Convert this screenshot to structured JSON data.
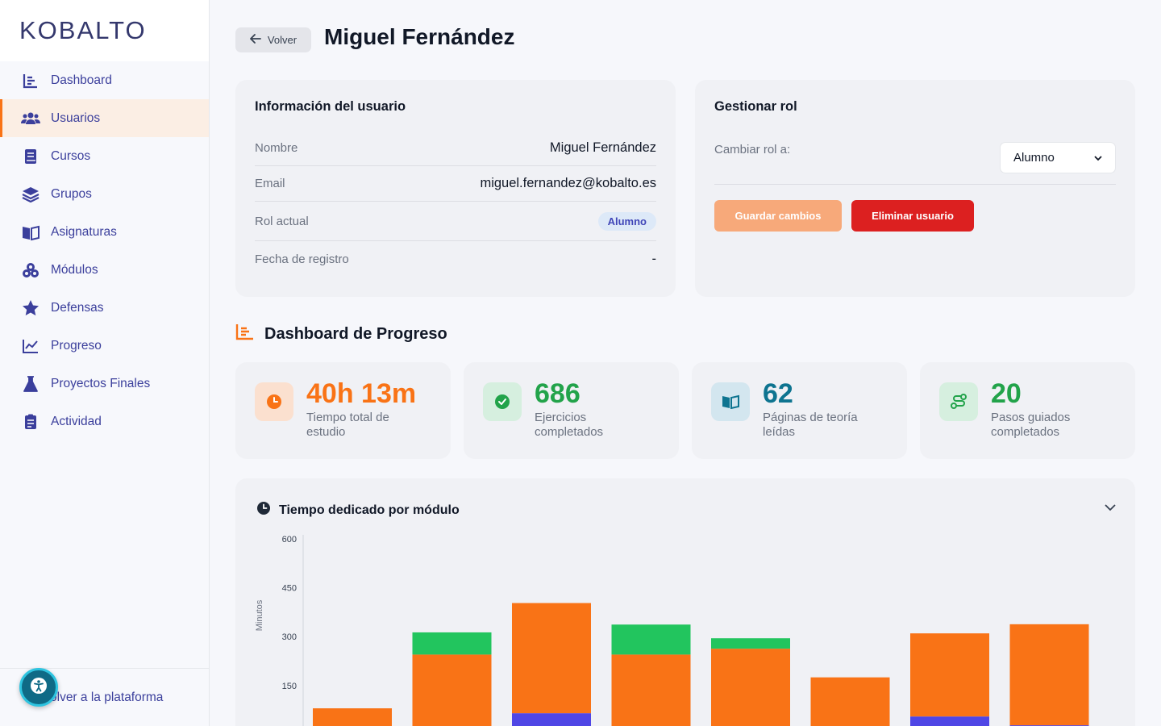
{
  "brand": {
    "logo": "KOBALTO"
  },
  "sidebar": {
    "items": [
      {
        "label": "Dashboard",
        "icon": "dashboard-icon"
      },
      {
        "label": "Usuarios",
        "icon": "users-icon",
        "active": true
      },
      {
        "label": "Cursos",
        "icon": "book-icon"
      },
      {
        "label": "Grupos",
        "icon": "layers-icon"
      },
      {
        "label": "Asignaturas",
        "icon": "open-book-icon"
      },
      {
        "label": "Módulos",
        "icon": "cubes-icon"
      },
      {
        "label": "Defensas",
        "icon": "star-icon"
      },
      {
        "label": "Progreso",
        "icon": "line-chart-icon"
      },
      {
        "label": "Proyectos Finales",
        "icon": "flask-icon"
      },
      {
        "label": "Actividad",
        "icon": "clipboard-icon"
      }
    ],
    "bottom_link": "olver a la plataforma"
  },
  "header": {
    "back_label": "Volver",
    "title": "Miguel Fernández"
  },
  "user_info": {
    "title": "Información del usuario",
    "rows": [
      {
        "label": "Nombre",
        "value": "Miguel Fernández"
      },
      {
        "label": "Email",
        "value": "miguel.fernandez@kobalto.es"
      },
      {
        "label": "Rol actual",
        "value": "Alumno"
      },
      {
        "label": "Fecha de registro",
        "value": "-"
      }
    ]
  },
  "role": {
    "title": "Gestionar rol",
    "change_label": "Cambiar rol a:",
    "selected": "Alumno",
    "save_label": "Guardar cambios",
    "delete_label": "Eliminar usuario"
  },
  "progress": {
    "title": "Dashboard de Progreso",
    "stats": [
      {
        "value": "40h 13m",
        "label": "Tiempo total de estudio",
        "color": "#f97316",
        "bg": "#fbe0cf",
        "icon": "clock-icon"
      },
      {
        "value": "686",
        "label": "Ejercicios completados",
        "color": "#22a34a",
        "bg": "#d6efdf",
        "icon": "check-circle-icon"
      },
      {
        "value": "62",
        "label": "Páginas de teoría leídas",
        "color": "#0e7490",
        "bg": "#d3e6ef",
        "icon": "book-open-icon"
      },
      {
        "value": "20",
        "label": "Pasos guiados completados",
        "color": "#22a34a",
        "bg": "#d6efdf",
        "icon": "route-icon"
      }
    ]
  },
  "chart_title": "Tiempo dedicado por módulo",
  "colors": {
    "orange": "#f97316",
    "green": "#22c55e",
    "blue": "#4f46e5",
    "nav": "#3b3f9c"
  },
  "chart_data": {
    "type": "bar",
    "stacked": true,
    "title": "Tiempo dedicado por módulo",
    "ylabel": "Minutos",
    "yticks": [
      150,
      300,
      450,
      600
    ],
    "ylim": [
      0,
      600
    ],
    "grid": false,
    "series": [
      {
        "values": [
          0,
          0,
          65,
          0,
          25,
          0,
          55,
          28
        ],
        "color": "#4f46e5"
      },
      {
        "values": [
          80,
          245,
          338,
          245,
          238,
          175,
          255,
          310
        ],
        "color": "#f97316"
      },
      {
        "values": [
          0,
          68,
          0,
          92,
          32,
          0,
          0,
          0
        ],
        "color": "#22c55e"
      }
    ]
  }
}
